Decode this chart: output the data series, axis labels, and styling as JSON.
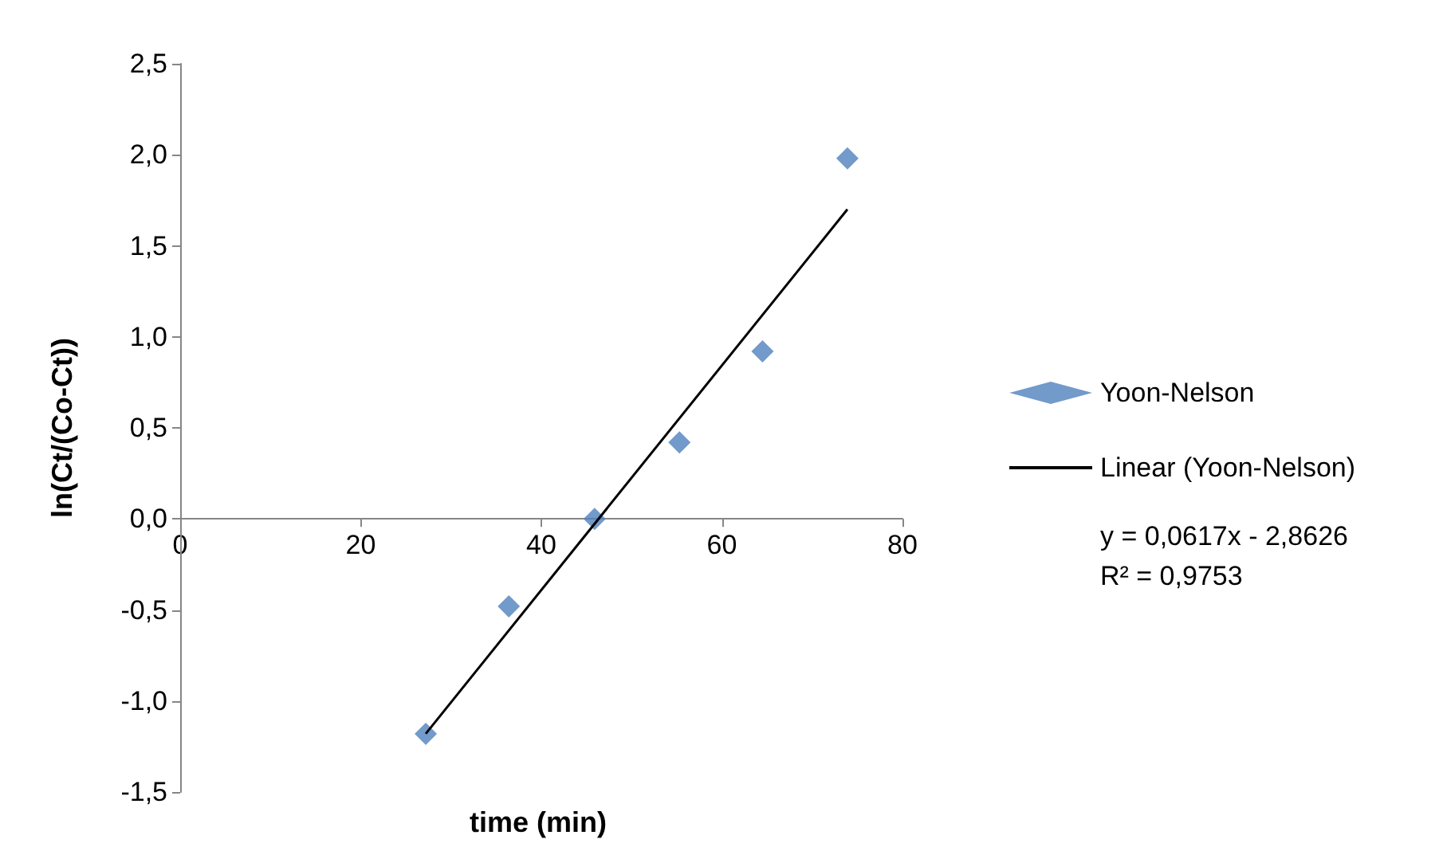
{
  "chart_data": {
    "type": "scatter",
    "xlabel": "time (min)",
    "ylabel": "ln(Ct/(Co-Ct))",
    "xlim": [
      0,
      80
    ],
    "xticks": [
      0,
      20,
      40,
      60,
      80
    ],
    "ylim": [
      -1.5,
      2.5
    ],
    "yticks": [
      {
        "value": -1.5,
        "label": "-1,5"
      },
      {
        "value": -1,
        "label": "-1,0"
      },
      {
        "value": -0.5,
        "label": "-0,5"
      },
      {
        "value": 0,
        "label": "0,0"
      },
      {
        "value": 0.5,
        "label": "0,5"
      },
      {
        "value": 1,
        "label": "1,0"
      },
      {
        "value": 1.5,
        "label": "1,5"
      },
      {
        "value": 2,
        "label": "2,0"
      },
      {
        "value": 2.5,
        "label": "2,5"
      }
    ],
    "grid": false,
    "legend": "right",
    "marker": "diamond",
    "series": [
      {
        "name": "Yoon-Nelson",
        "color": "#4f81bd",
        "x": [
          27.2,
          36.4,
          45.9,
          55.3,
          64.5,
          73.9
        ],
        "values": [
          -1.18,
          -0.48,
          0,
          0.42,
          0.92,
          1.98
        ]
      },
      {
        "name": "Linear (Yoon-Nelson)",
        "type": "line",
        "color": "#000000",
        "marker": "none",
        "line_style": "solid",
        "x": [
          27.2,
          73.9
        ],
        "values": [
          -1.18,
          1.7
        ]
      }
    ],
    "annotations": [
      "y = 0,0617x - 2,8626",
      "R² = 0,9753"
    ]
  }
}
